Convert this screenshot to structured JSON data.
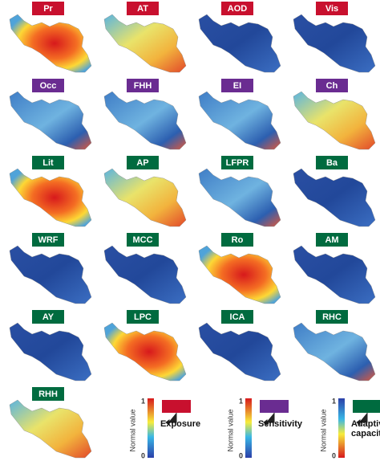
{
  "panels": [
    {
      "label": "Pr",
      "color": "#c8102e"
    },
    {
      "label": "AT",
      "color": "#c8102e"
    },
    {
      "label": "AOD",
      "color": "#c8102e"
    },
    {
      "label": "Vis",
      "color": "#c8102e"
    },
    {
      "label": "Occ",
      "color": "#6a2c91"
    },
    {
      "label": "FHH",
      "color": "#6a2c91"
    },
    {
      "label": "EI",
      "color": "#6a2c91"
    },
    {
      "label": "Ch",
      "color": "#6a2c91"
    },
    {
      "label": "Lit",
      "color": "#006b3f"
    },
    {
      "label": "AP",
      "color": "#006b3f"
    },
    {
      "label": "LFPR",
      "color": "#006b3f"
    },
    {
      "label": "Ba",
      "color": "#006b3f"
    },
    {
      "label": "WRF",
      "color": "#006b3f"
    },
    {
      "label": "MCC",
      "color": "#006b3f"
    },
    {
      "label": "Ro",
      "color": "#006b3f"
    },
    {
      "label": "AM",
      "color": "#006b3f"
    },
    {
      "label": "AY",
      "color": "#006b3f"
    },
    {
      "label": "LPC",
      "color": "#006b3f"
    },
    {
      "label": "ICA",
      "color": "#006b3f"
    },
    {
      "label": "RHC",
      "color": "#006b3f"
    },
    {
      "label": "RHH",
      "color": "#006b3f"
    }
  ],
  "legend": [
    {
      "axis_label": "Normal value",
      "top": 1,
      "bottom": 0,
      "name": "Exposure",
      "color": "#c8102e"
    },
    {
      "axis_label": "Normal value",
      "top": 1,
      "bottom": 0,
      "name": "Sensitivity",
      "color": "#6a2c91"
    },
    {
      "axis_label": "Normal value",
      "top": 1,
      "bottom": 0,
      "name": "Adaptive capacity",
      "color": "#006b3f"
    }
  ]
}
